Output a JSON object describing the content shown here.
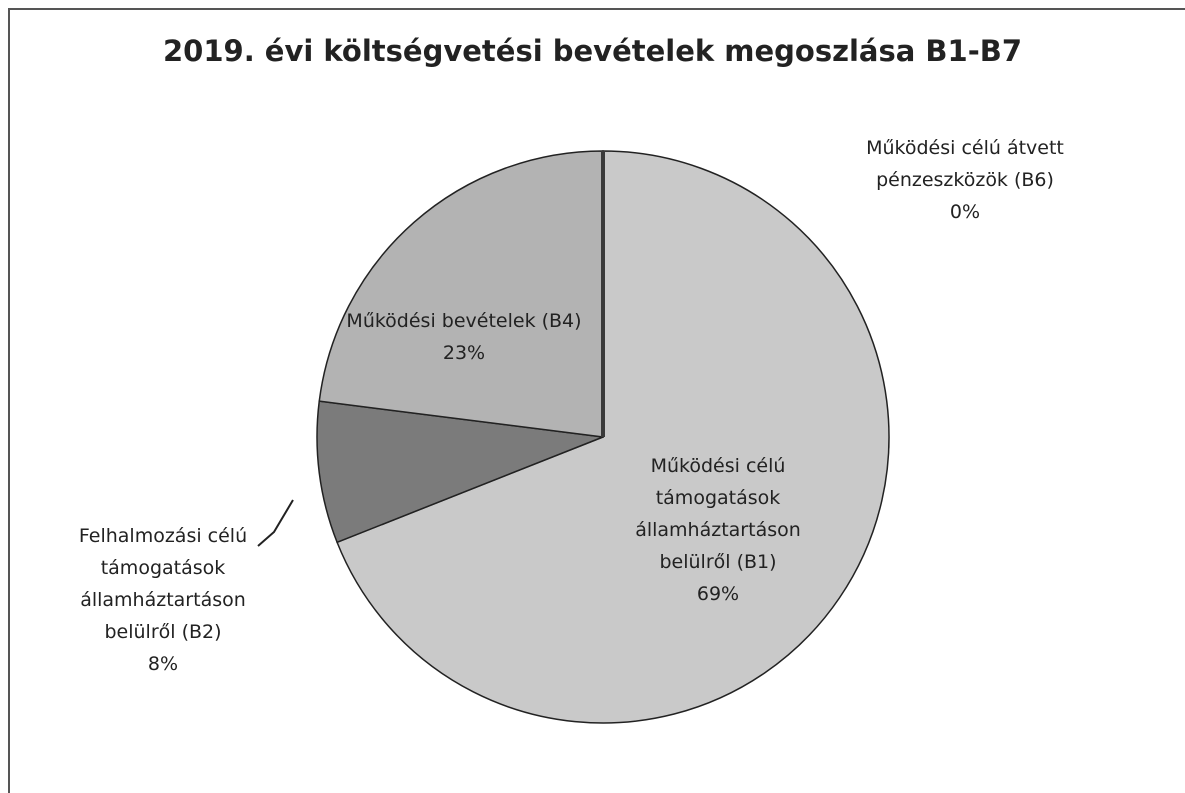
{
  "chart_data": {
    "type": "pie",
    "title": "2019. évi költségvetési bevételek megoszlása B1-B7",
    "categories": [
      "Működési célú támogatások államháztartáson belülről (B1)",
      "Felhalmozási célú támogatások államháztartáson belülről (B2)",
      "Működési bevételek (B4)",
      "Működési célú átvett pénzeszközök (B6)"
    ],
    "values": [
      69,
      8,
      23,
      0
    ],
    "value_labels": [
      "69%",
      "8%",
      "23%",
      "0%"
    ],
    "colors": [
      "#c9c9c9",
      "#7b7b7b",
      "#b3b3b3",
      "#3a3a3a"
    ]
  }
}
